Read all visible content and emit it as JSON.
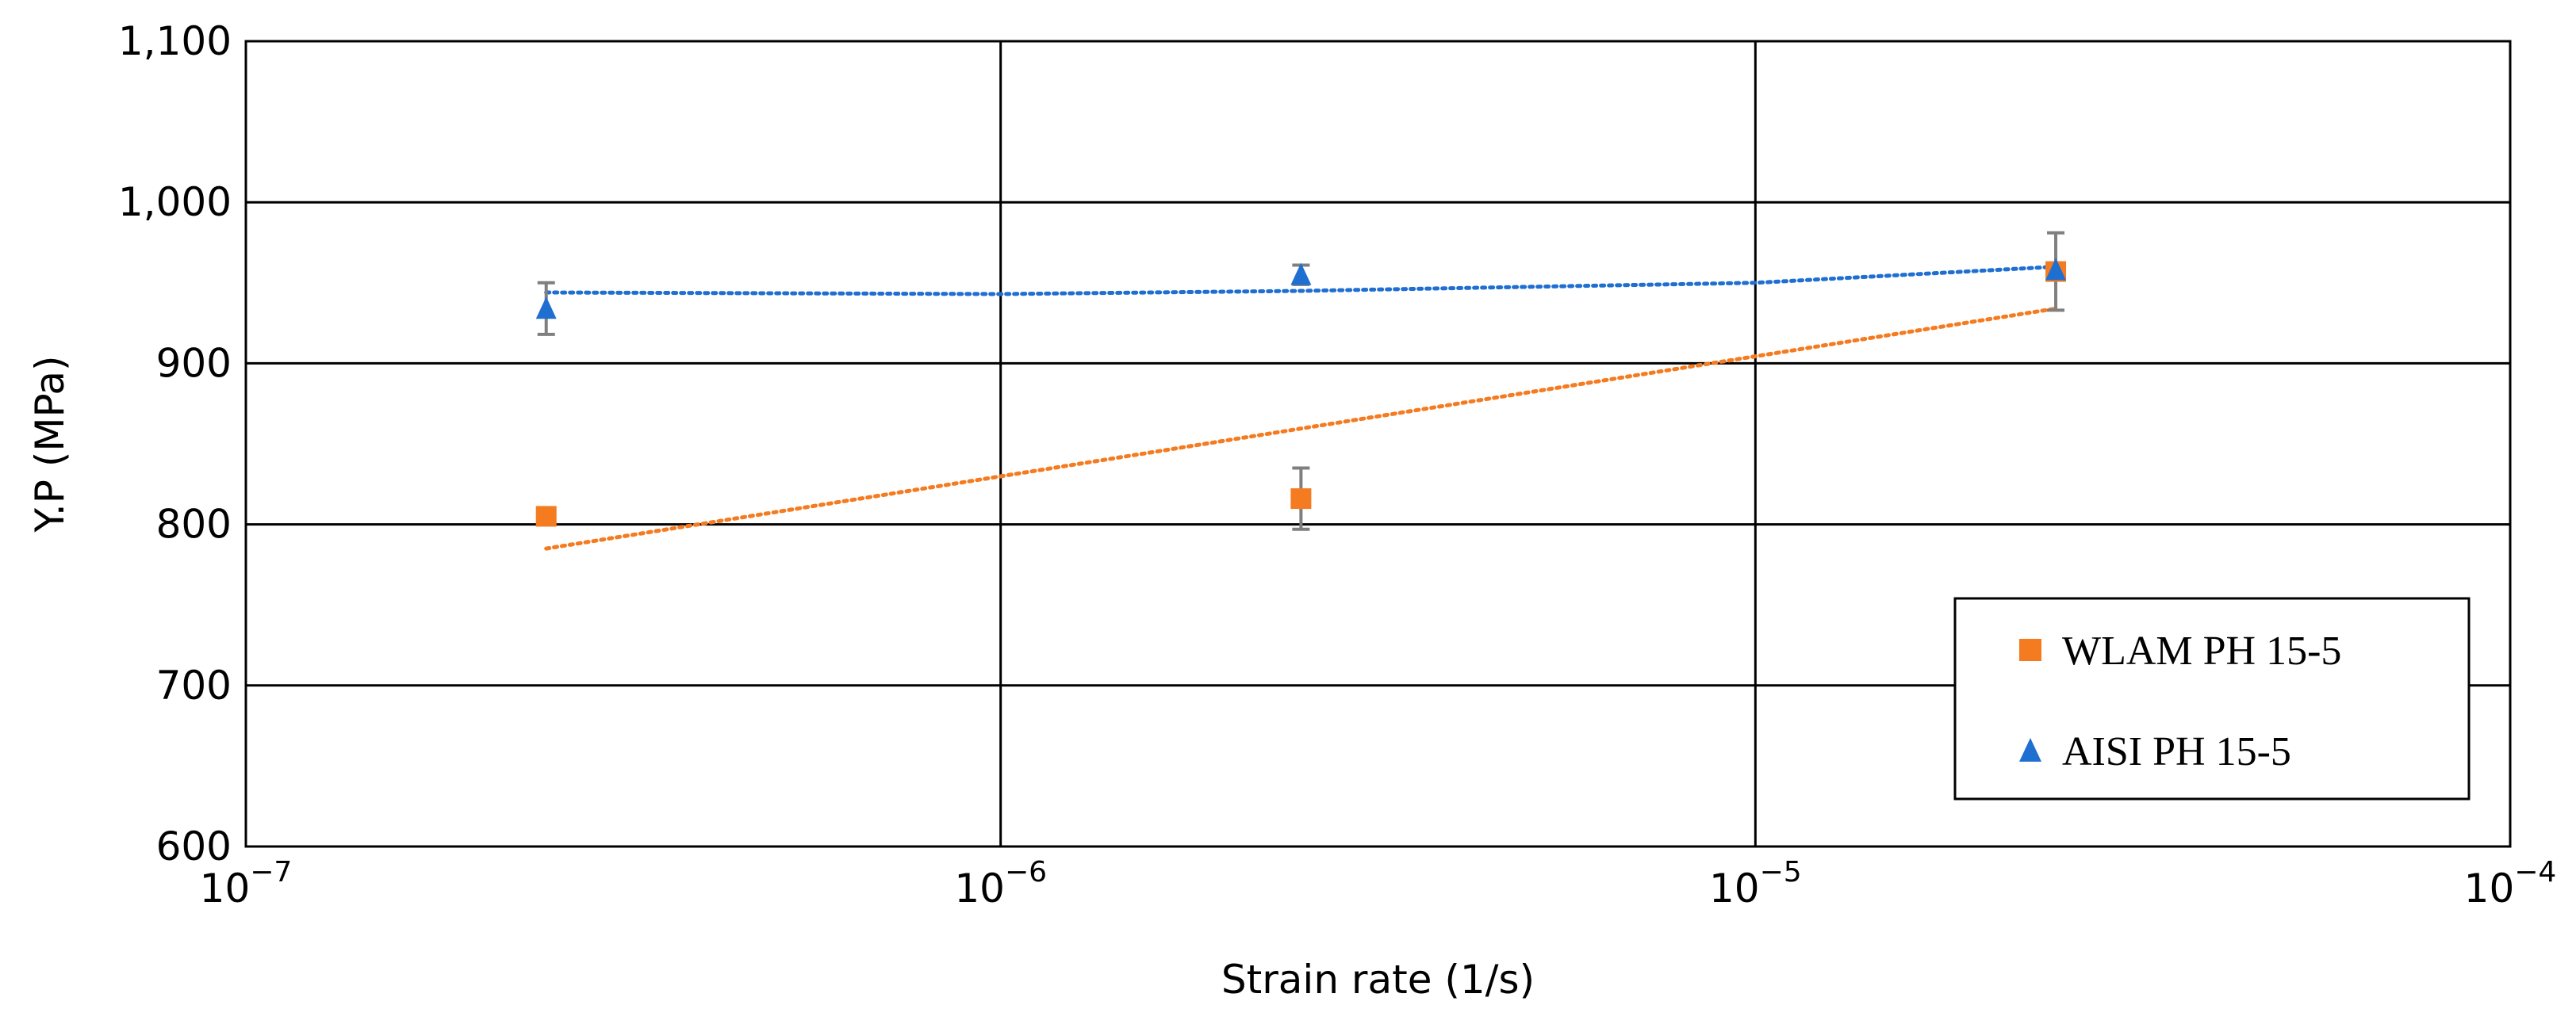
{
  "chart_data": {
    "type": "scatter",
    "title": "",
    "xlabel": "Strain rate (1/s)",
    "ylabel": "Y.P (MPa)",
    "xscale": "log",
    "xlim": [
      1e-07,
      0.0001
    ],
    "ylim": [
      600,
      1100
    ],
    "grid": true,
    "legend_position": "bottom-right",
    "y_ticks": [
      {
        "value": 600,
        "label": "600"
      },
      {
        "value": 700,
        "label": "700"
      },
      {
        "value": 800,
        "label": "800"
      },
      {
        "value": 900,
        "label": "900"
      },
      {
        "value": 1000,
        "label": "1,000"
      },
      {
        "value": 1100,
        "label": "1,100"
      }
    ],
    "x_ticks": [
      {
        "value": 1e-07,
        "base": "10",
        "exp": "−7"
      },
      {
        "value": 1e-06,
        "base": "10",
        "exp": "−6"
      },
      {
        "value": 1e-05,
        "base": "10",
        "exp": "−5"
      },
      {
        "value": 0.0001,
        "base": "10",
        "exp": "−4"
      }
    ],
    "series": [
      {
        "name": "WLAM PH 15-5",
        "marker": "square",
        "color": "#F47B20",
        "x": [
          2.5e-07,
          2.5e-06,
          2.5e-05
        ],
        "y": [
          805,
          816,
          957
        ],
        "error": [
          3,
          19,
          24
        ],
        "trendline": {
          "type": "log",
          "from": [
            2.5e-07,
            785
          ],
          "to": [
            2.5e-05,
            934
          ]
        }
      },
      {
        "name": "AISI PH 15-5",
        "marker": "triangle",
        "color": "#1F6FD1",
        "x": [
          2.5e-07,
          2.5e-06,
          2.5e-05
        ],
        "y": [
          934,
          955,
          958
        ],
        "error": [
          16,
          6,
          3
        ],
        "trendline": {
          "type": "poly",
          "points": [
            [
              2.5e-07,
              944
            ],
            [
              1e-06,
              943
            ],
            [
              2.5e-06,
              945
            ],
            [
              1e-05,
              950
            ],
            [
              2.5e-05,
              960
            ]
          ]
        }
      }
    ]
  }
}
